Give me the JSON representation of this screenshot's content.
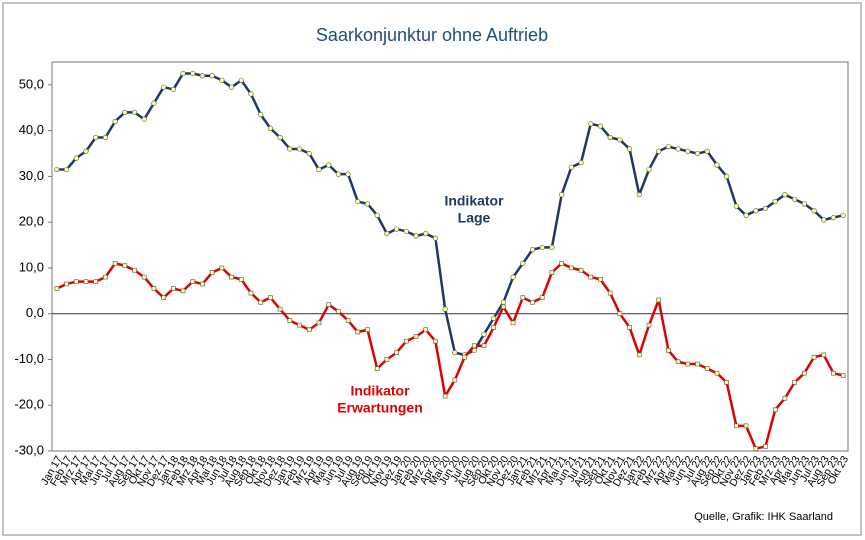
{
  "chart_data": {
    "type": "line",
    "title": "Saarkonjunktur ohne Auftrieb",
    "source": "Quelle, Grafik: IHK Saarland",
    "categories": [
      "Jan 17",
      "Feb 17",
      "Mrz 17",
      "Apr 17",
      "Mai 17",
      "Jun 17",
      "Jul 17",
      "Aug 17",
      "Sep 17",
      "Okt 17",
      "Nov 17",
      "Dez 17",
      "Jan 18",
      "Feb 18",
      "Mrz 18",
      "Apr 18",
      "Mai 18",
      "Jun 18",
      "Jul 18",
      "Aug 18",
      "Sep 18",
      "Okt 18",
      "Nov 18",
      "Dez 18",
      "Jan 19",
      "Feb 19",
      "Mrz 19",
      "Apr 19",
      "Mai 19",
      "Jun 19",
      "Jul 19",
      "Aug 19",
      "Sep 19",
      "Okt 19",
      "Nov 19",
      "Dez 19",
      "Jan 20",
      "Feb 20",
      "Mrz 20",
      "Apr 20",
      "Mai 20",
      "Jun 20",
      "Jul 20",
      "Aug 20",
      "Sep 20",
      "Okt 20",
      "Nov 20",
      "Dez 20",
      "Jan 21",
      "Feb 21",
      "Mrz 21",
      "Apr 21",
      "Mai 21",
      "Jun 21",
      "Jul 21",
      "Aug 21",
      "Sep 21",
      "Okt 21",
      "Nov 21",
      "Dez 21",
      "Jan 22",
      "Feb 22",
      "Mrz 22",
      "Apr 22",
      "Mai 22",
      "Jun 22",
      "Jul 22",
      "Aug 22",
      "Sep 22",
      "Okt 22",
      "Nov 22",
      "Dez 22",
      "Jan 23",
      "Feb 23",
      "Mrz 23",
      "Apr 23",
      "Mai 23",
      "Jun 23",
      "Jul 23",
      "Aug 23",
      "Sep 23",
      "Okt 23"
    ],
    "series": [
      {
        "name": "Indikator Lage",
        "color": "#1f3864",
        "values": [
          31.5,
          31.5,
          34,
          35.5,
          38.5,
          38.5,
          42,
          44,
          44,
          42.5,
          46,
          49.5,
          49,
          52.5,
          52.5,
          52,
          52,
          51,
          49.5,
          51,
          48,
          43.5,
          40.5,
          38.5,
          36,
          36,
          35,
          31.5,
          32.5,
          30.5,
          30.5,
          24.5,
          24,
          21.5,
          17.5,
          18.5,
          18,
          17,
          17.5,
          16.5,
          1,
          -8.5,
          -9,
          -8,
          -4.5,
          -1,
          2.5,
          8,
          11,
          14,
          14.5,
          14.5,
          26,
          32,
          33,
          41.5,
          41,
          38.5,
          38,
          36,
          26,
          31.5,
          35.5,
          36.5,
          36,
          35.5,
          35,
          35.5,
          32.5,
          30,
          23.5,
          21.5,
          22.5,
          23,
          24.5,
          26,
          25,
          24,
          22.5,
          20.5,
          21,
          21.5
        ]
      },
      {
        "name": "Indikator Erwartungen",
        "color": "#e00000",
        "values": [
          5.5,
          6.5,
          7,
          7,
          7,
          8,
          11,
          10.5,
          9.5,
          8,
          5.5,
          3.5,
          5.5,
          5,
          7,
          6.5,
          9,
          10,
          8,
          7.5,
          4.5,
          2.5,
          3.5,
          1,
          -1.5,
          -2.5,
          -3.5,
          -2,
          2,
          0.5,
          -1.5,
          -4,
          -3.5,
          -12,
          -10,
          -8.5,
          -6,
          -5,
          -3.5,
          -6,
          -18,
          -14.5,
          -9.5,
          -7,
          -7,
          -3,
          1.5,
          -2,
          3.5,
          2.5,
          3.5,
          9,
          11,
          10,
          9.5,
          8,
          7.5,
          4.5,
          0,
          -3,
          -9,
          -2.5,
          3,
          -8,
          -10.5,
          -11,
          -11,
          -12,
          -13,
          -15,
          -24.5,
          -24.5,
          -29.5,
          -29,
          -21,
          -18.5,
          -15,
          -13,
          -9.5,
          -9,
          -13,
          -13.5
        ]
      }
    ],
    "annotations": [
      {
        "lines": [
          "Indikator",
          "Lage"
        ],
        "color": "#1f3864"
      },
      {
        "lines": [
          "Indikator",
          "Erwartungen"
        ],
        "color": "#e00000"
      }
    ],
    "marker_color": "#ffff99",
    "zero_line": true,
    "ylim": [
      -30,
      55
    ],
    "yticks": [
      {
        "value": -30,
        "label": "-30,0"
      },
      {
        "value": -20,
        "label": "-20,0"
      },
      {
        "value": -10,
        "label": "-10,0"
      },
      {
        "value": 0,
        "label": "0,0"
      },
      {
        "value": 10,
        "label": "10,0"
      },
      {
        "value": 20,
        "label": "20,0"
      },
      {
        "value": 30,
        "label": "30,0"
      },
      {
        "value": 40,
        "label": "40,0"
      },
      {
        "value": 50,
        "label": "50,0"
      }
    ]
  }
}
